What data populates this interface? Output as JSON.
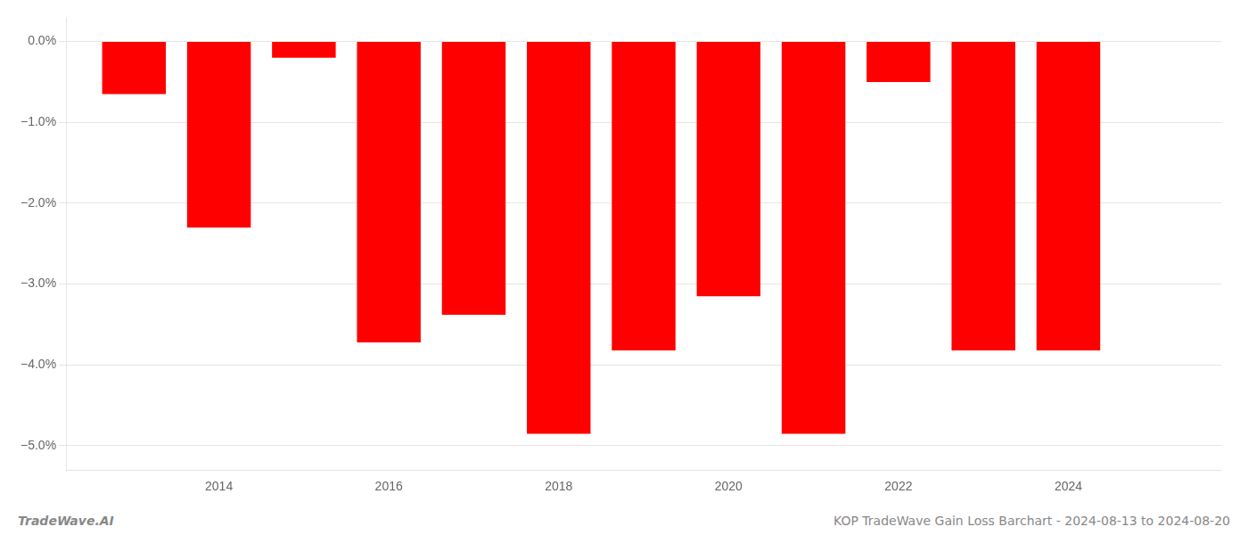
{
  "chart_data": {
    "type": "bar",
    "x": [
      2013,
      2014,
      2015,
      2016,
      2017,
      2018,
      2019,
      2020,
      2021,
      2022,
      2023,
      2024
    ],
    "values": [
      -0.65,
      -2.3,
      -0.2,
      -3.72,
      -3.38,
      -4.85,
      -3.82,
      -3.15,
      -4.85,
      -0.5,
      -3.82,
      -3.82
    ],
    "color": "#ff0000",
    "xlim": [
      2012.2,
      2025.8
    ],
    "xticks": [
      2014,
      2016,
      2018,
      2020,
      2022,
      2024
    ],
    "ylim": [
      -5.3,
      0.3
    ],
    "yticks": [
      {
        "value": 0.0,
        "label": "0.0%"
      },
      {
        "value": -1.0,
        "label": "−1.0%"
      },
      {
        "value": -2.0,
        "label": "−2.0%"
      },
      {
        "value": -3.0,
        "label": "−3.0%"
      },
      {
        "value": -4.0,
        "label": "−4.0%"
      },
      {
        "value": -5.0,
        "label": "−5.0%"
      }
    ],
    "grid": "y",
    "annotations": [
      "TradeWave.AI",
      "KOP TradeWave Gain Loss Barchart - 2024-08-13 to 2024-08-20"
    ]
  }
}
